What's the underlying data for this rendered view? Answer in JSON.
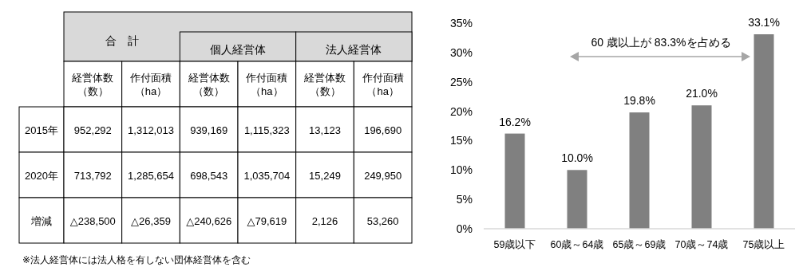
{
  "chart_data": [
    {
      "type": "other",
      "categories": [
        "経営体数（数）",
        "作付面積（ha）",
        "経営体数（数）",
        "作付面積（ha）",
        "経営体数（数）",
        "作付面積（ha）"
      ],
      "y_categories": [
        "2015年",
        "2020年",
        "増減"
      ],
      "cell_labels": [
        [
          "952,292",
          "1,312,013",
          "939,169",
          "1,115,323",
          "13,123",
          "196,690"
        ],
        [
          "713,792",
          "1,285,654",
          "698,543",
          "1,035,704",
          "15,249",
          "249,950"
        ],
        [
          "△238,500",
          "△26,359",
          "△240,626",
          "△79,619",
          "2,126",
          "53,260"
        ]
      ],
      "annotations": [
        "合　計",
        "個人経営体",
        "法人経営体",
        "※法人経営体には法人格を有しない団体経営体を含む"
      ]
    },
    {
      "type": "bar",
      "categories": [
        "59歳以下",
        "60歳～64歳",
        "65歳～69歳",
        "70歳～74歳",
        "75歳以上"
      ],
      "values": [
        16.2,
        10.0,
        19.8,
        21.0,
        33.1
      ],
      "value_labels": [
        "16.2%",
        "10.0%",
        "19.8%",
        "21.0%",
        "33.1%"
      ],
      "color": "#808080",
      "ylim": [
        0,
        35
      ],
      "yticks": [
        {
          "value": 0,
          "label": "0%"
        },
        {
          "value": 5,
          "label": "5%"
        },
        {
          "value": 10,
          "label": "10%"
        },
        {
          "value": 15,
          "label": "15%"
        },
        {
          "value": 20,
          "label": "20%"
        },
        {
          "value": 25,
          "label": "25%"
        },
        {
          "value": 30,
          "label": "30%"
        },
        {
          "value": 35,
          "label": "35%"
        }
      ],
      "annotations": [
        "60 歳以上が 83.3%を占める"
      ],
      "grid": false
    }
  ]
}
